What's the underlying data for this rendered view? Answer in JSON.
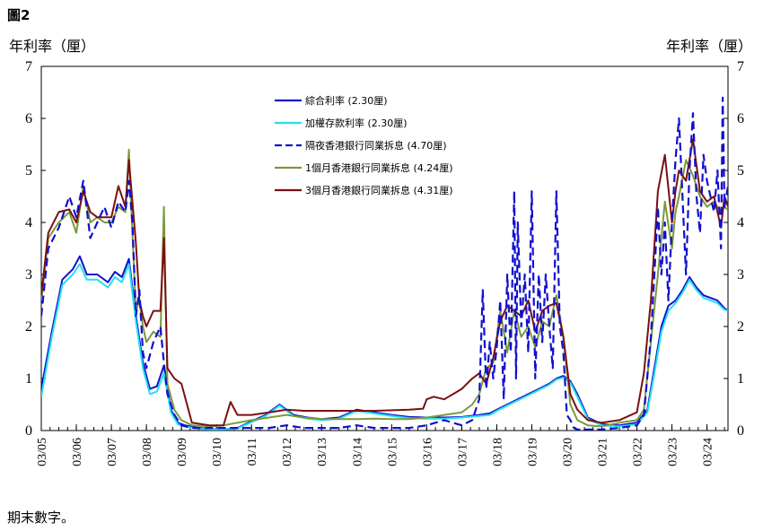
{
  "figure_label": "圖2",
  "footnote": "期末數字。",
  "chart_data": {
    "type": "line",
    "ylabel_left": "年利率（厘）",
    "ylabel_right": "年利率（厘）",
    "ylim": [
      0,
      7
    ],
    "yticks": [
      "0",
      "1",
      "2",
      "3",
      "4",
      "5",
      "6",
      "7"
    ],
    "xlim": [
      2005.0,
      2024.6
    ],
    "xticks": [
      "03/05",
      "03/06",
      "03/07",
      "03/08",
      "03/09",
      "03/10",
      "03/11",
      "03/12",
      "03/13",
      "03/14",
      "03/15",
      "03/16",
      "03/17",
      "03/18",
      "03/19",
      "03/20",
      "03/21",
      "03/22",
      "03/23",
      "03/24"
    ],
    "grid": false,
    "legend_position": "top-center",
    "series": [
      {
        "name": "綜合利率 (2.30厘)",
        "color": "#1010d0",
        "style": "solid",
        "x": [
          2005.0,
          2005.3,
          2005.6,
          2005.9,
          2006.1,
          2006.3,
          2006.6,
          2006.9,
          2007.1,
          2007.3,
          2007.5,
          2007.7,
          2007.9,
          2008.1,
          2008.3,
          2008.5,
          2008.7,
          2008.9,
          2009.1,
          2009.4,
          2009.8,
          2010.2,
          2010.6,
          2011.0,
          2011.4,
          2011.8,
          2012.2,
          2012.6,
          2013.0,
          2013.5,
          2014.0,
          2014.5,
          2015.0,
          2015.5,
          2016.0,
          2016.5,
          2017.0,
          2017.5,
          2017.8,
          2018.0,
          2018.3,
          2018.6,
          2018.9,
          2019.2,
          2019.5,
          2019.7,
          2019.9,
          2020.1,
          2020.3,
          2020.6,
          2021.0,
          2021.5,
          2022.0,
          2022.3,
          2022.5,
          2022.7,
          2022.9,
          2023.1,
          2023.3,
          2023.5,
          2023.7,
          2023.9,
          2024.1,
          2024.3,
          2024.5,
          2024.6
        ],
        "y": [
          0.8,
          1.9,
          2.9,
          3.1,
          3.35,
          3.0,
          3.0,
          2.85,
          3.05,
          2.95,
          3.3,
          2.2,
          1.3,
          0.8,
          0.85,
          1.25,
          0.4,
          0.15,
          0.1,
          0.06,
          0.03,
          0.02,
          0.05,
          0.18,
          0.3,
          0.5,
          0.3,
          0.25,
          0.22,
          0.25,
          0.4,
          0.35,
          0.3,
          0.26,
          0.25,
          0.25,
          0.26,
          0.3,
          0.33,
          0.4,
          0.5,
          0.6,
          0.7,
          0.8,
          0.9,
          1.0,
          1.05,
          0.95,
          0.7,
          0.25,
          0.12,
          0.1,
          0.15,
          0.4,
          1.2,
          2.0,
          2.4,
          2.5,
          2.7,
          2.95,
          2.75,
          2.6,
          2.55,
          2.5,
          2.35,
          2.3
        ]
      },
      {
        "name": "加權存款利率 (2.30厘)",
        "color": "#22e0ee",
        "style": "solid",
        "x": [
          2005.0,
          2005.3,
          2005.6,
          2005.9,
          2006.1,
          2006.3,
          2006.6,
          2006.9,
          2007.1,
          2007.3,
          2007.5,
          2007.7,
          2007.9,
          2008.1,
          2008.3,
          2008.5,
          2008.7,
          2008.9,
          2009.1,
          2009.4,
          2009.8,
          2010.2,
          2010.6,
          2011.0,
          2011.4,
          2011.8,
          2012.2,
          2012.6,
          2013.0,
          2013.5,
          2014.0,
          2014.5,
          2015.0,
          2015.5,
          2016.0,
          2016.5,
          2017.0,
          2017.5,
          2017.8,
          2018.0,
          2018.3,
          2018.6,
          2018.9,
          2019.2,
          2019.5,
          2019.7,
          2019.9,
          2020.1,
          2020.3,
          2020.6,
          2021.0,
          2021.5,
          2022.0,
          2022.3,
          2022.5,
          2022.7,
          2022.9,
          2023.1,
          2023.3,
          2023.5,
          2023.7,
          2023.9,
          2024.1,
          2024.3,
          2024.5,
          2024.6
        ],
        "y": [
          0.65,
          1.8,
          2.8,
          3.0,
          3.2,
          2.9,
          2.9,
          2.75,
          2.95,
          2.85,
          3.2,
          2.1,
          1.2,
          0.7,
          0.75,
          1.1,
          0.35,
          0.12,
          0.08,
          0.04,
          0.02,
          0.02,
          0.04,
          0.16,
          0.28,
          0.48,
          0.28,
          0.23,
          0.2,
          0.23,
          0.38,
          0.33,
          0.28,
          0.24,
          0.23,
          0.23,
          0.25,
          0.28,
          0.3,
          0.38,
          0.48,
          0.58,
          0.68,
          0.78,
          0.88,
          0.98,
          1.02,
          0.92,
          0.65,
          0.22,
          0.1,
          0.08,
          0.12,
          0.35,
          1.1,
          1.9,
          2.3,
          2.45,
          2.65,
          2.9,
          2.7,
          2.55,
          2.5,
          2.45,
          2.32,
          2.3
        ]
      },
      {
        "name": "隔夜香港銀行同業拆息 (4.70厘)",
        "color": "#1010d0",
        "style": "dashed",
        "x": [
          2005.0,
          2005.2,
          2005.5,
          2005.8,
          2006.0,
          2006.2,
          2006.4,
          2006.6,
          2006.8,
          2007.0,
          2007.2,
          2007.4,
          2007.5,
          2007.6,
          2007.7,
          2007.8,
          2007.9,
          2008.0,
          2008.2,
          2008.4,
          2008.5,
          2008.6,
          2008.8,
          2009.0,
          2009.3,
          2009.8,
          2010.5,
          2011.0,
          2011.5,
          2012.0,
          2012.5,
          2013.0,
          2013.5,
          2014.0,
          2014.5,
          2015.0,
          2015.5,
          2016.0,
          2016.5,
          2017.0,
          2017.3,
          2017.5,
          2017.6,
          2017.7,
          2017.8,
          2017.9,
          2018.0,
          2018.1,
          2018.2,
          2018.3,
          2018.4,
          2018.5,
          2018.55,
          2018.6,
          2018.7,
          2018.8,
          2018.9,
          2019.0,
          2019.1,
          2019.2,
          2019.3,
          2019.4,
          2019.5,
          2019.6,
          2019.7,
          2019.8,
          2019.9,
          2020.0,
          2020.1,
          2020.2,
          2020.3,
          2020.5,
          2021.0,
          2021.5,
          2022.0,
          2022.2,
          2022.4,
          2022.5,
          2022.6,
          2022.7,
          2022.8,
          2022.9,
          2023.0,
          2023.1,
          2023.2,
          2023.3,
          2023.4,
          2023.5,
          2023.6,
          2023.7,
          2023.8,
          2023.9,
          2024.0,
          2024.1,
          2024.2,
          2024.3,
          2024.4,
          2024.45,
          2024.5,
          2024.6
        ],
        "y": [
          2.2,
          3.5,
          3.9,
          4.5,
          4.1,
          4.8,
          3.7,
          4.0,
          4.3,
          3.9,
          4.4,
          4.2,
          4.8,
          4.0,
          2.2,
          2.7,
          1.5,
          1.2,
          1.7,
          2.0,
          1.3,
          0.7,
          0.3,
          0.1,
          0.05,
          0.05,
          0.05,
          0.05,
          0.05,
          0.1,
          0.05,
          0.05,
          0.05,
          0.1,
          0.05,
          0.05,
          0.05,
          0.1,
          0.2,
          0.1,
          0.2,
          0.6,
          2.7,
          0.8,
          1.7,
          1.0,
          1.6,
          2.5,
          0.6,
          3.0,
          1.5,
          4.6,
          1.0,
          4.0,
          2.0,
          3.0,
          1.5,
          4.6,
          1.0,
          3.0,
          1.7,
          3.0,
          2.0,
          1.2,
          4.6,
          2.0,
          1.5,
          0.3,
          0.2,
          0.05,
          0.02,
          0.02,
          0.02,
          0.05,
          0.1,
          0.3,
          1.8,
          3.0,
          4.3,
          3.0,
          4.0,
          2.5,
          4.0,
          5.2,
          6.0,
          4.5,
          3.0,
          5.0,
          6.1,
          4.5,
          3.8,
          5.3,
          4.8,
          4.5,
          4.2,
          5.0,
          3.5,
          6.4,
          4.3,
          4.7
        ]
      },
      {
        "name": "1個月香港銀行同業拆息 (4.24厘)",
        "color": "#7a9a3a",
        "style": "solid",
        "x": [
          2005.0,
          2005.2,
          2005.5,
          2005.8,
          2006.0,
          2006.2,
          2006.4,
          2006.6,
          2006.8,
          2007.0,
          2007.2,
          2007.4,
          2007.5,
          2007.6,
          2007.7,
          2007.8,
          2007.9,
          2008.0,
          2008.2,
          2008.4,
          2008.5,
          2008.6,
          2008.8,
          2009.0,
          2009.3,
          2009.8,
          2010.2,
          2010.6,
          2011.0,
          2011.5,
          2012.0,
          2012.5,
          2013.0,
          2013.5,
          2014.0,
          2014.5,
          2015.0,
          2015.5,
          2016.0,
          2016.5,
          2017.0,
          2017.3,
          2017.5,
          2017.7,
          2017.9,
          2018.1,
          2018.3,
          2018.5,
          2018.7,
          2018.9,
          2019.1,
          2019.3,
          2019.5,
          2019.7,
          2019.9,
          2020.1,
          2020.3,
          2020.6,
          2021.0,
          2021.5,
          2022.0,
          2022.2,
          2022.4,
          2022.6,
          2022.8,
          2023.0,
          2023.1,
          2023.2,
          2023.4,
          2023.6,
          2023.8,
          2024.0,
          2024.2,
          2024.4,
          2024.5,
          2024.6
        ],
        "y": [
          2.5,
          3.7,
          4.0,
          4.2,
          3.8,
          4.7,
          4.0,
          4.1,
          4.0,
          4.0,
          4.3,
          4.2,
          5.4,
          3.8,
          2.3,
          2.5,
          2.0,
          1.7,
          1.9,
          1.8,
          4.3,
          0.9,
          0.4,
          0.2,
          0.1,
          0.08,
          0.1,
          0.15,
          0.2,
          0.25,
          0.3,
          0.25,
          0.22,
          0.22,
          0.22,
          0.23,
          0.22,
          0.22,
          0.25,
          0.3,
          0.35,
          0.5,
          0.7,
          1.2,
          1.3,
          2.3,
          1.5,
          2.3,
          1.8,
          2.0,
          1.6,
          2.1,
          2.0,
          2.6,
          1.8,
          0.5,
          0.2,
          0.1,
          0.08,
          0.15,
          0.2,
          0.4,
          1.7,
          3.0,
          4.4,
          3.5,
          4.2,
          4.5,
          5.2,
          4.9,
          4.5,
          4.3,
          4.4,
          4.2,
          4.3,
          4.24
        ]
      },
      {
        "name": "3個月香港銀行同業拆息 (4.31厘)",
        "color": "#7a1010",
        "style": "solid",
        "x": [
          2005.0,
          2005.2,
          2005.5,
          2005.8,
          2006.0,
          2006.2,
          2006.4,
          2006.6,
          2006.8,
          2007.0,
          2007.2,
          2007.4,
          2007.5,
          2007.6,
          2007.7,
          2007.8,
          2007.9,
          2008.0,
          2008.2,
          2008.4,
          2008.5,
          2008.6,
          2008.8,
          2009.0,
          2009.3,
          2009.8,
          2010.2,
          2010.4,
          2010.6,
          2011.0,
          2011.5,
          2012.0,
          2012.5,
          2013.0,
          2013.5,
          2014.0,
          2014.5,
          2015.0,
          2015.5,
          2015.9,
          2016.0,
          2016.2,
          2016.5,
          2017.0,
          2017.3,
          2017.5,
          2017.7,
          2017.9,
          2018.1,
          2018.3,
          2018.5,
          2018.7,
          2018.9,
          2019.1,
          2019.3,
          2019.5,
          2019.7,
          2019.9,
          2020.1,
          2020.3,
          2020.6,
          2021.0,
          2021.5,
          2022.0,
          2022.2,
          2022.4,
          2022.6,
          2022.8,
          2023.0,
          2023.1,
          2023.2,
          2023.4,
          2023.6,
          2023.8,
          2024.0,
          2024.2,
          2024.4,
          2024.5,
          2024.6
        ],
        "y": [
          2.6,
          3.8,
          4.2,
          4.25,
          4.0,
          4.6,
          4.2,
          4.1,
          4.1,
          4.1,
          4.7,
          4.3,
          5.2,
          4.4,
          3.6,
          2.5,
          2.2,
          2.0,
          2.3,
          2.3,
          3.7,
          1.2,
          1.0,
          0.9,
          0.15,
          0.1,
          0.1,
          0.55,
          0.3,
          0.3,
          0.35,
          0.4,
          0.38,
          0.38,
          0.38,
          0.38,
          0.38,
          0.39,
          0.4,
          0.42,
          0.6,
          0.65,
          0.6,
          0.8,
          1.0,
          1.1,
          0.9,
          1.4,
          2.1,
          2.4,
          2.3,
          2.2,
          2.5,
          1.9,
          2.3,
          2.4,
          2.45,
          1.8,
          0.7,
          0.4,
          0.2,
          0.15,
          0.2,
          0.35,
          1.1,
          2.5,
          4.6,
          5.3,
          4.0,
          4.6,
          5.0,
          4.8,
          5.6,
          4.6,
          4.4,
          4.5,
          3.9,
          4.5,
          4.31
        ]
      }
    ]
  }
}
